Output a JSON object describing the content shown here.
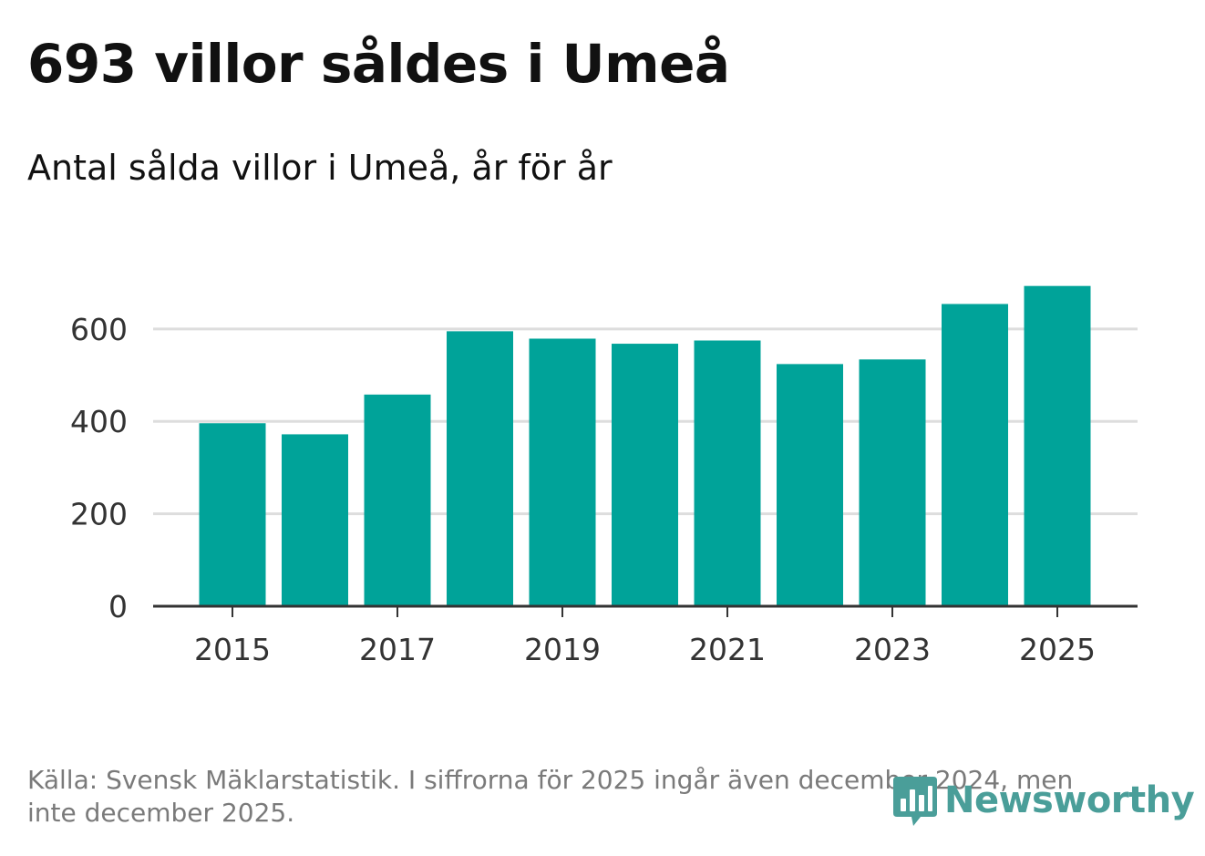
{
  "header": {
    "title": "693 villor såldes i Umeå",
    "subtitle": "Antal sålda villor i Umeå, år för år"
  },
  "chart_data": {
    "type": "bar",
    "title": "693 villor såldes i Umeå",
    "subtitle": "Antal sålda villor i Umeå, år för år",
    "categories": [
      "2015",
      "2016",
      "2017",
      "2018",
      "2019",
      "2020",
      "2021",
      "2022",
      "2023",
      "2024",
      "2025"
    ],
    "values": [
      396,
      372,
      458,
      595,
      579,
      568,
      575,
      524,
      534,
      654,
      693
    ],
    "x_tick_labels": [
      "2015",
      "2017",
      "2019",
      "2021",
      "2023",
      "2025"
    ],
    "y_ticks": [
      0,
      200,
      400,
      600
    ],
    "y_tick_labels": [
      "0",
      "200",
      "400",
      "600"
    ],
    "ylim": [
      0,
      720
    ],
    "xlabel": "",
    "ylabel": "",
    "grid": true,
    "bar_color": "#00a399",
    "grid_color": "#dddddd",
    "axis_color": "#333333"
  },
  "footer": {
    "source": "Källa: Svensk Mäklarstatistik. I siffrorna för 2025 ingår även december 2024, men inte december 2025.",
    "brand_name": "Newsworthy",
    "brand_color": "#4a9e99"
  }
}
